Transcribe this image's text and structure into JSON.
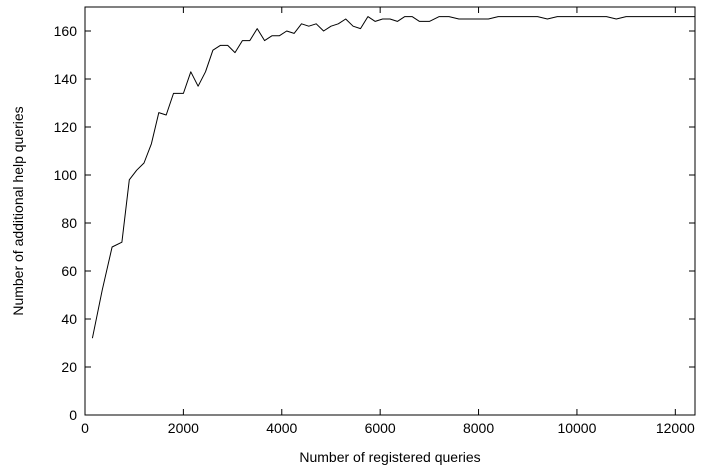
{
  "chart_data": {
    "type": "line",
    "title": "",
    "xlabel": "Number of registered queries",
    "ylabel": "Number of additional help queries",
    "xlim": [
      0,
      12400
    ],
    "ylim": [
      0,
      170
    ],
    "x_ticks": [
      0,
      2000,
      4000,
      6000,
      8000,
      10000,
      12000
    ],
    "x_tick_labels": [
      "0",
      "2000",
      "4000",
      "6000",
      "8000",
      "10000",
      "12000"
    ],
    "y_ticks": [
      0,
      20,
      40,
      60,
      80,
      100,
      120,
      140,
      160
    ],
    "y_tick_labels": [
      "0",
      "20",
      "40",
      "60",
      "80",
      "100",
      "120",
      "140",
      "160"
    ],
    "grid": false,
    "legend": "none",
    "line_color": "#000000",
    "series": [
      {
        "x": [
          150,
          350,
          550,
          750,
          900,
          1050,
          1200,
          1350,
          1500,
          1650,
          1800,
          2000,
          2150,
          2300,
          2450,
          2600,
          2750,
          2900,
          3050,
          3200,
          3350,
          3500,
          3650,
          3800,
          3950,
          4100,
          4250,
          4400,
          4550,
          4700,
          4850,
          5000,
          5150,
          5300,
          5450,
          5600,
          5750,
          5900,
          6050,
          6200,
          6350,
          6500,
          6650,
          6800,
          7000,
          7200,
          7400,
          7600,
          7800,
          8000,
          8200,
          8400,
          8600,
          8800,
          9000,
          9200,
          9400,
          9600,
          9800,
          10000,
          10200,
          10400,
          10600,
          10800,
          11000,
          11200,
          11400,
          11600,
          11800,
          12000,
          12400
        ],
        "values": [
          32,
          52,
          70,
          72,
          98,
          102,
          105,
          113,
          126,
          125,
          134,
          134,
          143,
          137,
          143,
          152,
          154,
          154,
          151,
          156,
          156,
          161,
          156,
          158,
          158,
          160,
          159,
          163,
          162,
          163,
          160,
          162,
          163,
          165,
          162,
          161,
          166,
          164,
          165,
          165,
          164,
          166,
          166,
          164,
          164,
          166,
          166,
          165,
          165,
          165,
          165,
          166,
          166,
          166,
          166,
          166,
          165,
          166,
          166,
          166,
          166,
          166,
          166,
          165,
          166,
          166,
          166,
          166,
          166,
          166,
          166
        ]
      }
    ]
  }
}
